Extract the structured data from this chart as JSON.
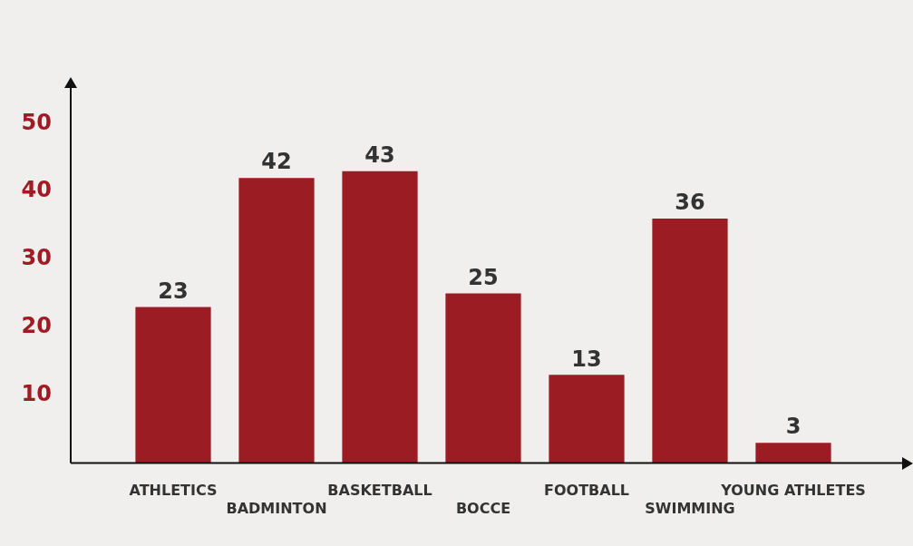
{
  "chart_data": {
    "type": "bar",
    "categories": [
      "ATHLETICS",
      "BADMINTON",
      "BASKETBALL",
      "BOCCE",
      "FOOTBALL",
      "SWIMMING",
      "YOUNG ATHLETES"
    ],
    "values": [
      23,
      42,
      43,
      25,
      13,
      36,
      3
    ],
    "color": "#9b1c22",
    "ylim": [
      0,
      56
    ],
    "yticks": [
      10,
      20,
      30,
      40,
      50
    ],
    "grid": false,
    "legend": false,
    "data_labels": true
  }
}
